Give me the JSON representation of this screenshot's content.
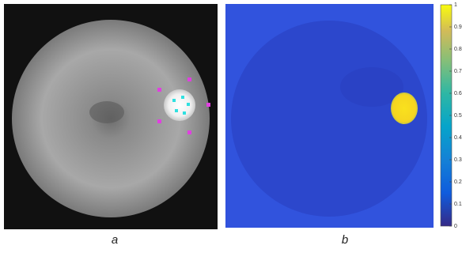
{
  "panels": [
    {
      "label": "a"
    },
    {
      "label": "b"
    }
  ],
  "colorbar": {
    "ticks": [
      0,
      0.1,
      0.2,
      0.3,
      0.4,
      0.5,
      0.6,
      0.7,
      0.8,
      0.9,
      1
    ]
  }
}
